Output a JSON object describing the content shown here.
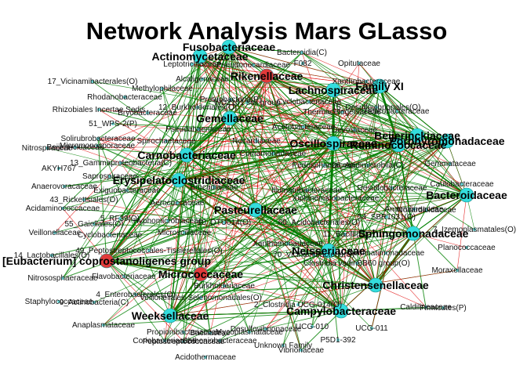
{
  "title": "Network Analysis Mars GLasso",
  "colors": {
    "positive_edge": "#008000",
    "negative_edge": "#e00000",
    "hub_node": "#33dddd",
    "neg_hub_node": "#e03a3a",
    "small_node": "#66cccc"
  },
  "hubs": [
    {
      "id": "fusobacteriaceae",
      "label": "Fusobacteriaceae",
      "color": "cyan"
    },
    {
      "id": "actinomycetaceae",
      "label": "Actinomycetaceae",
      "color": "cyan"
    },
    {
      "id": "rikenellaceae",
      "label": "Rikenellaceae",
      "color": "red"
    },
    {
      "id": "family-xi",
      "label": "Family XI",
      "color": "cyan"
    },
    {
      "id": "lachnospiraceae",
      "label": "Lachnospiraceae",
      "color": "cyan"
    },
    {
      "id": "gemellaceae",
      "label": "Gemellaceae",
      "color": "cyan"
    },
    {
      "id": "beijerinckiaceae",
      "label": "Beijerinckiaceae",
      "color": "cyan"
    },
    {
      "id": "oscillospiraceae",
      "label": "Oscillospiraceae",
      "color": "cyan"
    },
    {
      "id": "ruminococcaceae",
      "label": "Ruminococcaceae",
      "color": "cyan"
    },
    {
      "id": "porphyromonadaceae",
      "label": "Porphyromonadaceae",
      "color": "cyan"
    },
    {
      "id": "carnobacteriaceae",
      "label": "Carnobacteriaceae",
      "color": "cyan"
    },
    {
      "id": "erysipelatoclostridiaceae",
      "label": "Erysipelatoclostridiaceae",
      "color": "cyan"
    },
    {
      "id": "bacteroidaceae",
      "label": "Bacteroidaceae",
      "color": "cyan"
    },
    {
      "id": "pasteurellaceae",
      "label": "Pasteurellaceae",
      "color": "cyan"
    },
    {
      "id": "sphingomonadaceae",
      "label": "Sphingomonadaceae",
      "color": "cyan"
    },
    {
      "id": "eubacterium-coprostanoligenes-group",
      "label": "[Eubacterium] coprostanoligenes group",
      "color": "red"
    },
    {
      "id": "neisseriaceae",
      "label": "Neisseriaceae",
      "color": "cyan"
    },
    {
      "id": "micrococcaceae",
      "label": "Micrococcaceae",
      "color": "red"
    },
    {
      "id": "christensenellaceae",
      "label": "Christensenellaceae",
      "color": "cyan"
    },
    {
      "id": "campylobacteraceae",
      "label": "Campylobacteraceae",
      "color": "cyan"
    },
    {
      "id": "weeksellaceae",
      "label": "Weeksellaceae",
      "color": "cyan"
    }
  ],
  "minor_labels": [
    "Leptotrichiaceae",
    "Pseudonocardiaceae",
    "F082",
    "Opitutaceae",
    "Bacteroidia(C)",
    "17_Vicinamibacterales(O)",
    "Methylophilaceae",
    "Alcaligenaceae",
    "Xanthobacteraceae",
    "Rhodanobacteraceae",
    "Proteobacteria(P)",
    "Rhizobiales Incertae Sedis",
    "12_Burkholderiales(O)",
    "WD2101 soil group",
    "Cyclobacteriaceae",
    "15_Desulfovibrionales(O)",
    "Bryobacteraceae",
    "Thermacetogeniaceae",
    "Helicobacteraceae",
    "51_WPS-2(P)",
    "Pseudahaenaceae",
    "Acetobacteraceae",
    "Solirubrobacteraceae",
    "Micromonosporaceae",
    "Spirochaetaceae",
    "Nocardiaceae",
    "Devosiaceae",
    "Nitrospiraceae",
    "Beijerinckiaceae",
    "Comamonadaceae",
    "Pedosphaeraceae",
    "26_Acidimicrobiia(C)",
    "Gemmataceae",
    "AKYH767",
    "13_Gammaproteobacteria(C)",
    "Saprospiraceae",
    "Caulobacteraceae",
    "Anaerovoracaceae",
    "Exiguobacteraceae",
    "Brocadiaceae",
    "Illumatobacteraceae",
    "Acidaminococcaceae",
    "43_Rickettsiales(O)",
    "Aerococcaceae",
    "Xiphinematobacteraceae",
    "Desulfobacteraceae",
    "Anaerolineaceae",
    "Nocardioidaceae",
    "Veillonellaceae",
    "55_Gaiellales(O)",
    "5_RF39(O)",
    "Hyphomicrobiaceae",
    "10_DTU014(O)",
    "60_Acidobacteriales(O)",
    "54_SBR1031(O)",
    "7_Izemoplasmatales(O)",
    "Microscillaceae",
    "11_Bacilli(C)",
    "Cyclobacteriaceae",
    "Xanthomonadaceae",
    "Planococcaceae",
    "14_Lactobacillales(O)",
    "49_Peptostreptococcales-Tissierellales(O)",
    "70_Vicinamibacteria(C)",
    "Gemmatimonadaceae",
    "Nitrososphaeraceae",
    "Flavobacteriaceae",
    "Burkholderiaceae",
    "Clostridia vadinBB60 group(O)",
    "Moraxellaceae",
    "4_Enterobacterales(O)",
    "Veillonellales-Selenomonadales(O)",
    "Caldilineaceae",
    "Staphylococcaceae",
    "9_Actinobacteria(C)",
    "2_Clostridia UCG-014(O)",
    "Firmicutes(P)",
    "Anaplasmataceae",
    "Desulfovibrionaceae",
    "UCG-010",
    "UCG-011",
    "P5D1-392",
    "Propionibacteriaceae",
    "Bacillaceae",
    "Mycoplasmataceae",
    "Coriobacteriaceae",
    "Peptostreptococcaceae",
    "Chthoniobacteraceae",
    "Unknown Family",
    "Vibrionaceae",
    "Acidothermaceae"
  ]
}
